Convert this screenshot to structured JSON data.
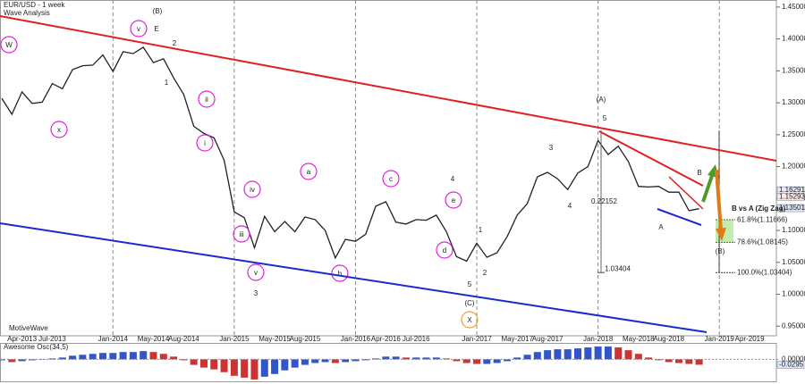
{
  "chart_data": {
    "type": "line",
    "title": "EUR/USD - 1 week",
    "subtitle": "Wave Analysis",
    "watermark": "MotiveWave",
    "x": [
      "2013-02",
      "2013-03",
      "2013-04",
      "2013-05",
      "2013-06",
      "2013-07",
      "2013-08",
      "2013-09",
      "2013-10",
      "2013-11",
      "2013-12",
      "2014-01",
      "2014-02",
      "2014-03",
      "2014-04",
      "2014-05",
      "2014-06",
      "2014-07",
      "2014-08",
      "2014-09",
      "2014-10",
      "2014-11",
      "2014-12",
      "2015-01",
      "2015-02",
      "2015-03",
      "2015-04",
      "2015-05",
      "2015-06",
      "2015-07",
      "2015-08",
      "2015-09",
      "2015-10",
      "2015-11",
      "2015-12",
      "2016-01",
      "2016-02",
      "2016-03",
      "2016-04",
      "2016-05",
      "2016-06",
      "2016-07",
      "2016-08",
      "2016-09",
      "2016-10",
      "2016-11",
      "2016-12",
      "2017-01",
      "2017-02",
      "2017-03",
      "2017-04",
      "2017-05",
      "2017-06",
      "2017-07",
      "2017-08",
      "2017-09",
      "2017-10",
      "2017-11",
      "2017-12",
      "2018-01",
      "2018-02",
      "2018-03",
      "2018-04",
      "2018-05",
      "2018-06",
      "2018-07",
      "2018-08",
      "2018-09",
      "2018-10",
      "2018-11"
    ],
    "values": [
      1.307,
      1.282,
      1.317,
      1.299,
      1.301,
      1.33,
      1.322,
      1.352,
      1.358,
      1.359,
      1.375,
      1.349,
      1.38,
      1.377,
      1.387,
      1.363,
      1.369,
      1.339,
      1.313,
      1.263,
      1.252,
      1.245,
      1.21,
      1.129,
      1.12,
      1.073,
      1.122,
      1.098,
      1.114,
      1.098,
      1.121,
      1.117,
      1.1,
      1.057,
      1.086,
      1.083,
      1.094,
      1.138,
      1.145,
      1.113,
      1.11,
      1.117,
      1.116,
      1.124,
      1.098,
      1.059,
      1.052,
      1.08,
      1.058,
      1.065,
      1.09,
      1.124,
      1.142,
      1.184,
      1.191,
      1.181,
      1.164,
      1.19,
      1.2,
      1.241,
      1.219,
      1.232,
      1.208,
      1.169,
      1.168,
      1.169,
      1.16,
      1.16,
      1.131,
      1.134
    ],
    "color": "#222222",
    "xlim": [
      "2013-02",
      "2019-07"
    ],
    "xticks": [
      {
        "value": "2013-04",
        "label": "Apr-2013"
      },
      {
        "value": "2013-07",
        "label": "Jul-2013"
      },
      {
        "value": "2014-01",
        "label": "Jan-2014"
      },
      {
        "value": "2014-05",
        "label": "May-2014"
      },
      {
        "value": "2014-08",
        "label": "Aug-2014"
      },
      {
        "value": "2015-01",
        "label": "Jan-2015"
      },
      {
        "value": "2015-05",
        "label": "May-2015"
      },
      {
        "value": "2015-08",
        "label": "Aug-2015"
      },
      {
        "value": "2016-01",
        "label": "Jan-2016"
      },
      {
        "value": "2016-04",
        "label": "Apr-2016"
      },
      {
        "value": "2016-07",
        "label": "Jul-2016"
      },
      {
        "value": "2017-01",
        "label": "Jan-2017"
      },
      {
        "value": "2017-05",
        "label": "May-2017"
      },
      {
        "value": "2017-08",
        "label": "Aug-2017"
      },
      {
        "value": "2018-01",
        "label": "Jan-2018"
      },
      {
        "value": "2018-05",
        "label": "May-2018"
      },
      {
        "value": "2018-08",
        "label": "Aug-2018"
      },
      {
        "value": "2019-01",
        "label": "Jan-2019"
      },
      {
        "value": "2019-04",
        "label": "Apr-2019"
      }
    ],
    "ylim": [
      0.935,
      1.461
    ],
    "yticks": [
      {
        "value": 1.45,
        "label": "1.45000"
      },
      {
        "value": 1.4,
        "label": "1.40000"
      },
      {
        "value": 1.35,
        "label": "1.35000"
      },
      {
        "value": 1.3,
        "label": "1.30000"
      },
      {
        "value": 1.25,
        "label": "1.25000"
      },
      {
        "value": 1.2,
        "label": "1.20000"
      },
      {
        "value": 1.15,
        "label": "1.15000"
      },
      {
        "value": 1.1,
        "label": "1.10000"
      },
      {
        "value": 1.05,
        "label": "1.05000"
      },
      {
        "value": 1.0,
        "label": "1.00000"
      },
      {
        "value": 0.95,
        "label": "0.95000"
      }
    ],
    "wave_labels": [
      "W",
      "(B)",
      "v",
      "E",
      "2",
      "1",
      "x",
      "ii",
      "i",
      "iv",
      "iii",
      "v",
      "3",
      "a",
      "b",
      "c",
      "4",
      "e",
      "d",
      "1",
      "2",
      "5",
      "(C)",
      "X",
      "3",
      "4",
      "(A)",
      "5",
      "A",
      "B",
      "(B)"
    ],
    "fib_title": "B vs A (Zig Zag)",
    "fib_levels": [
      {
        "value": 1.11666,
        "label": "61.8%(1.11666)"
      },
      {
        "value": 1.08145,
        "label": "78.6%(1.08145)"
      },
      {
        "value": 1.03404,
        "label": "100.0%(1.03404)"
      }
    ],
    "measure": {
      "range": 0.22152,
      "target": 1.03404
    },
    "price_boxes": [
      1.16291,
      1.15293,
      1.13501
    ],
    "oscillator": {
      "title": "Awesome Osc(34,5)",
      "values": [
        -0.005,
        -0.015,
        -0.01,
        -0.005,
        0.0,
        0.005,
        0.01,
        0.02,
        0.025,
        0.03,
        0.035,
        0.035,
        0.04,
        0.04,
        0.045,
        0.04,
        0.03,
        0.015,
        -0.005,
        -0.03,
        -0.045,
        -0.055,
        -0.07,
        -0.09,
        -0.1,
        -0.11,
        -0.095,
        -0.08,
        -0.06,
        -0.045,
        -0.03,
        -0.02,
        -0.015,
        -0.02,
        -0.015,
        -0.01,
        -0.005,
        0.005,
        0.015,
        0.015,
        0.01,
        0.01,
        0.01,
        0.01,
        0.005,
        -0.01,
        -0.02,
        -0.025,
        -0.025,
        -0.02,
        -0.01,
        0.01,
        0.025,
        0.04,
        0.05,
        0.055,
        0.055,
        0.06,
        0.065,
        0.07,
        0.07,
        0.065,
        0.05,
        0.03,
        0.01,
        -0.005,
        -0.015,
        -0.02,
        -0.025,
        -0.0295
      ],
      "up_color": "#3355cc",
      "down_color": "#cc3333",
      "ylim": [
        -0.12,
        0.08
      ],
      "yticks": [
        {
          "value": 0,
          "label": "0.00000"
        }
      ],
      "current": -0.0295
    }
  }
}
